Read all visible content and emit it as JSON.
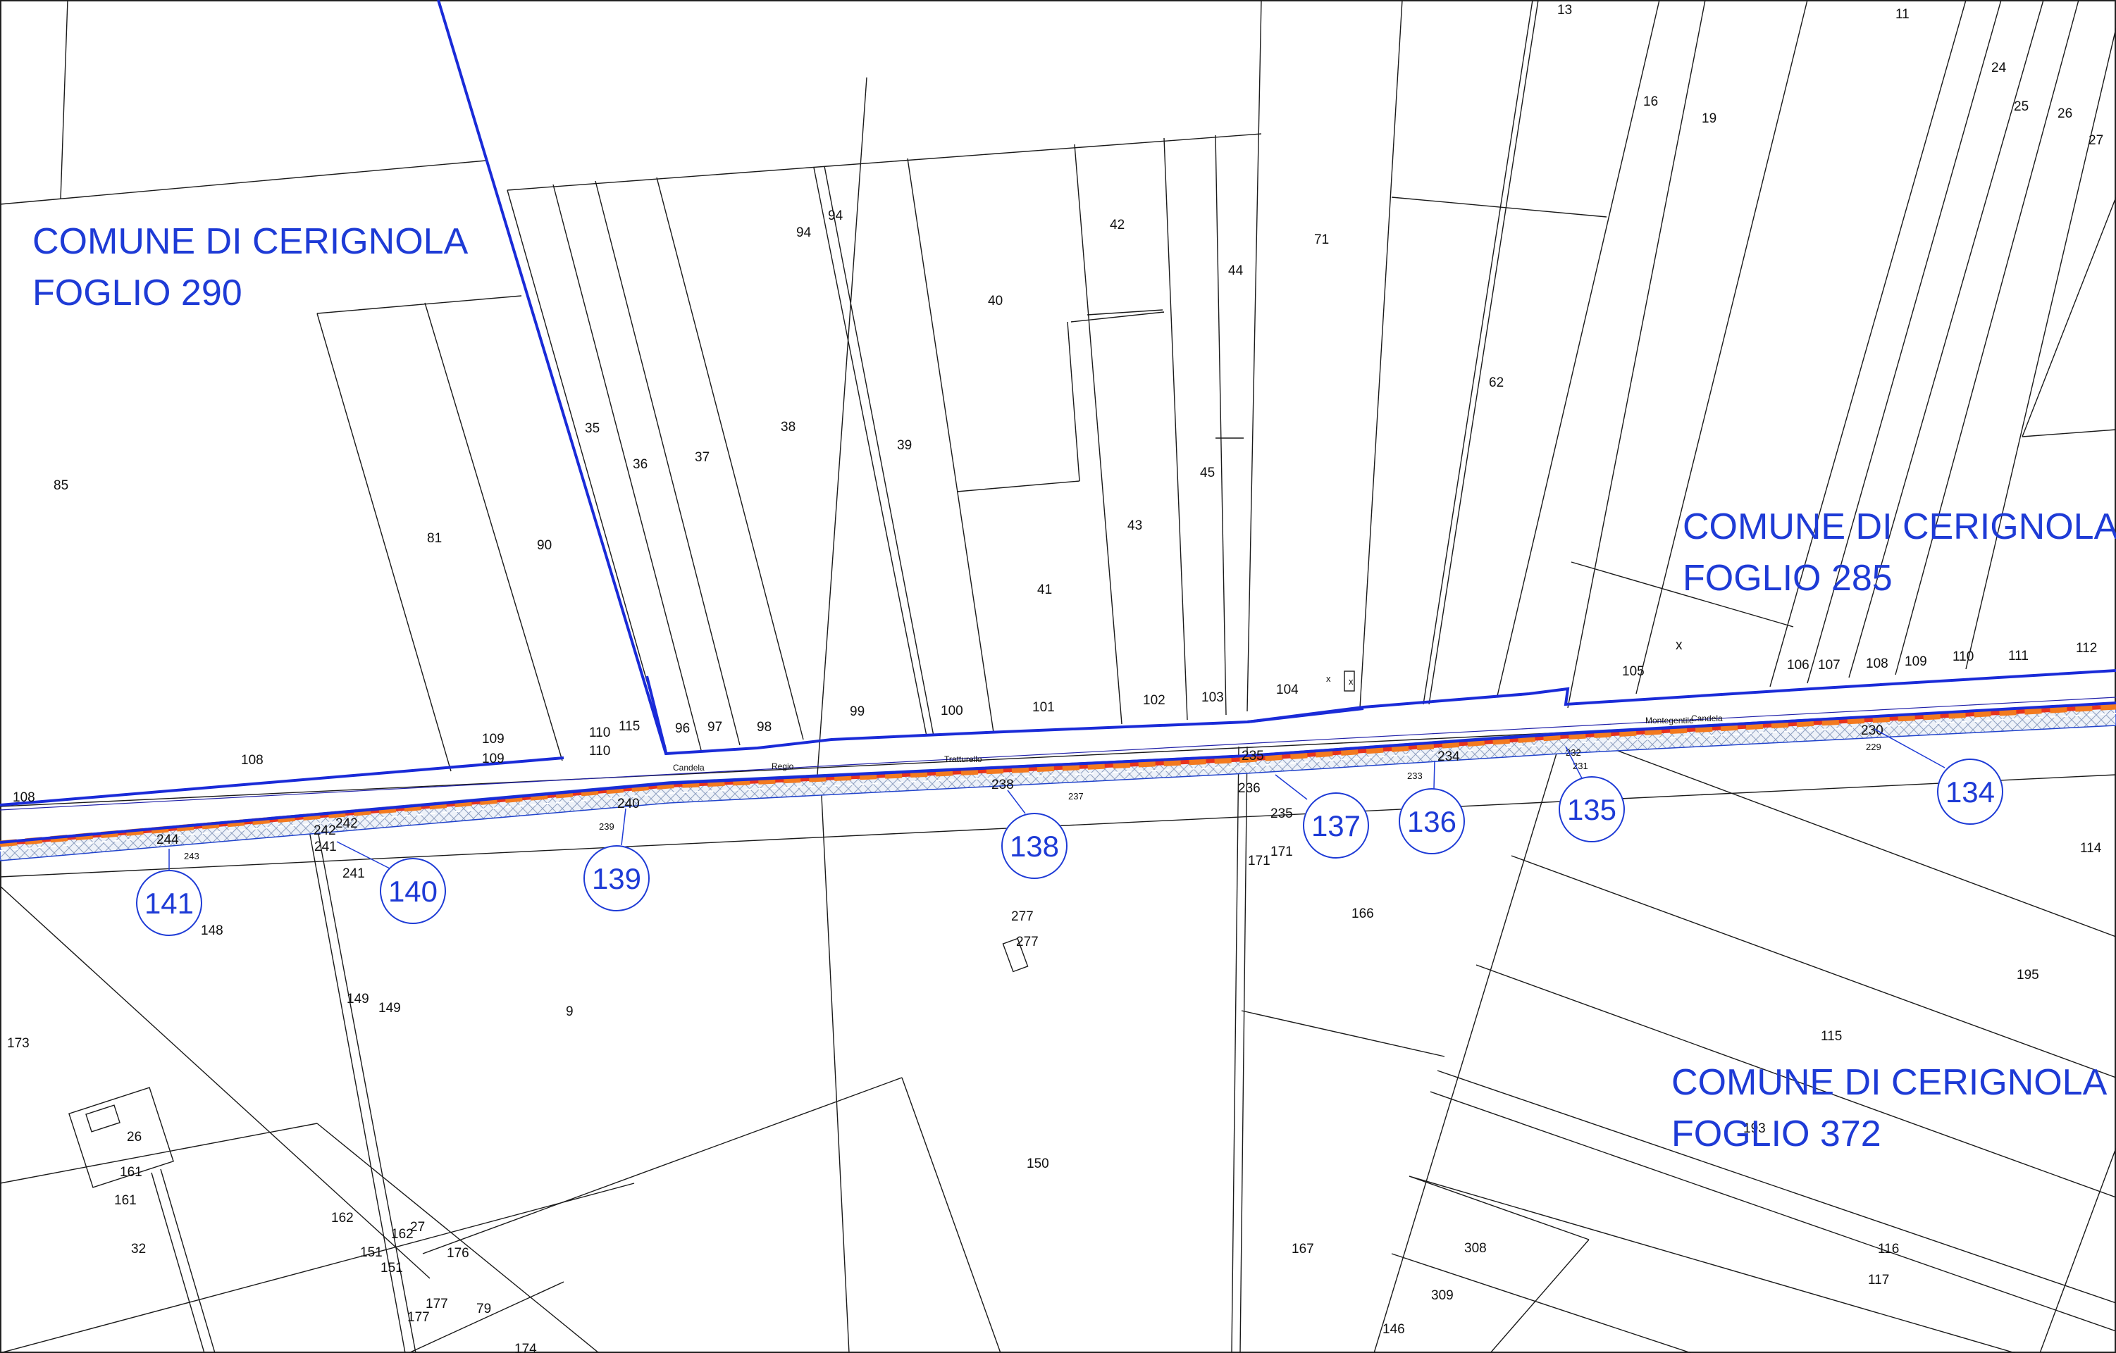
{
  "comuni": [
    {
      "line1": "COMUNE DI CERIGNOLA",
      "line2": "FOGLIO 290"
    },
    {
      "line1": "COMUNE DI CERIGNOLA",
      "line2": "FOGLIO 285"
    },
    {
      "line1": "COMUNE DI CERIGNOLA",
      "line2": "FOGLIO 372"
    }
  ],
  "markers": [
    "141",
    "140",
    "139",
    "138",
    "137",
    "136",
    "135",
    "134"
  ],
  "road_labels": [
    "Candela",
    "Regio",
    "Tratturello",
    "Montegentile",
    "Candela"
  ],
  "parcels": [
    "13",
    "11",
    "24",
    "25",
    "26",
    "27",
    "16",
    "19",
    "94",
    "94",
    "42",
    "71",
    "44",
    "40",
    "62",
    "85",
    "35",
    "38",
    "36",
    "37",
    "39",
    "45",
    "43",
    "81",
    "90",
    "41",
    "x",
    "106",
    "107",
    "108",
    "109",
    "110",
    "111",
    "112",
    "105",
    "104",
    "x",
    "x",
    "102",
    "103",
    "101",
    "100",
    "99",
    "98",
    "96",
    "97",
    "115",
    "110",
    "110",
    "109",
    "109",
    "108",
    "108",
    "235",
    "234",
    "232",
    "231",
    "233",
    "230",
    "229",
    "236",
    "235",
    "238",
    "237",
    "240",
    "239",
    "242",
    "242",
    "241",
    "241",
    "244",
    "243",
    "171",
    "171",
    "148",
    "114",
    "166",
    "195",
    "277",
    "277",
    "149",
    "149",
    "9",
    "115",
    "173",
    "150",
    "26",
    "161",
    "161",
    "193",
    "162",
    "162",
    "27",
    "151",
    "151",
    "32",
    "176",
    "177",
    "177",
    "79",
    "174",
    "167",
    "308",
    "116",
    "117",
    "309",
    "146"
  ],
  "colors": {
    "boundary": "#1a2bd8",
    "corridor_fill": "#e5ecf7",
    "corridor_dash": "#f37a1f",
    "corridor_dash_alt": "#e8331c",
    "label_blue": "#1e3bd6"
  }
}
